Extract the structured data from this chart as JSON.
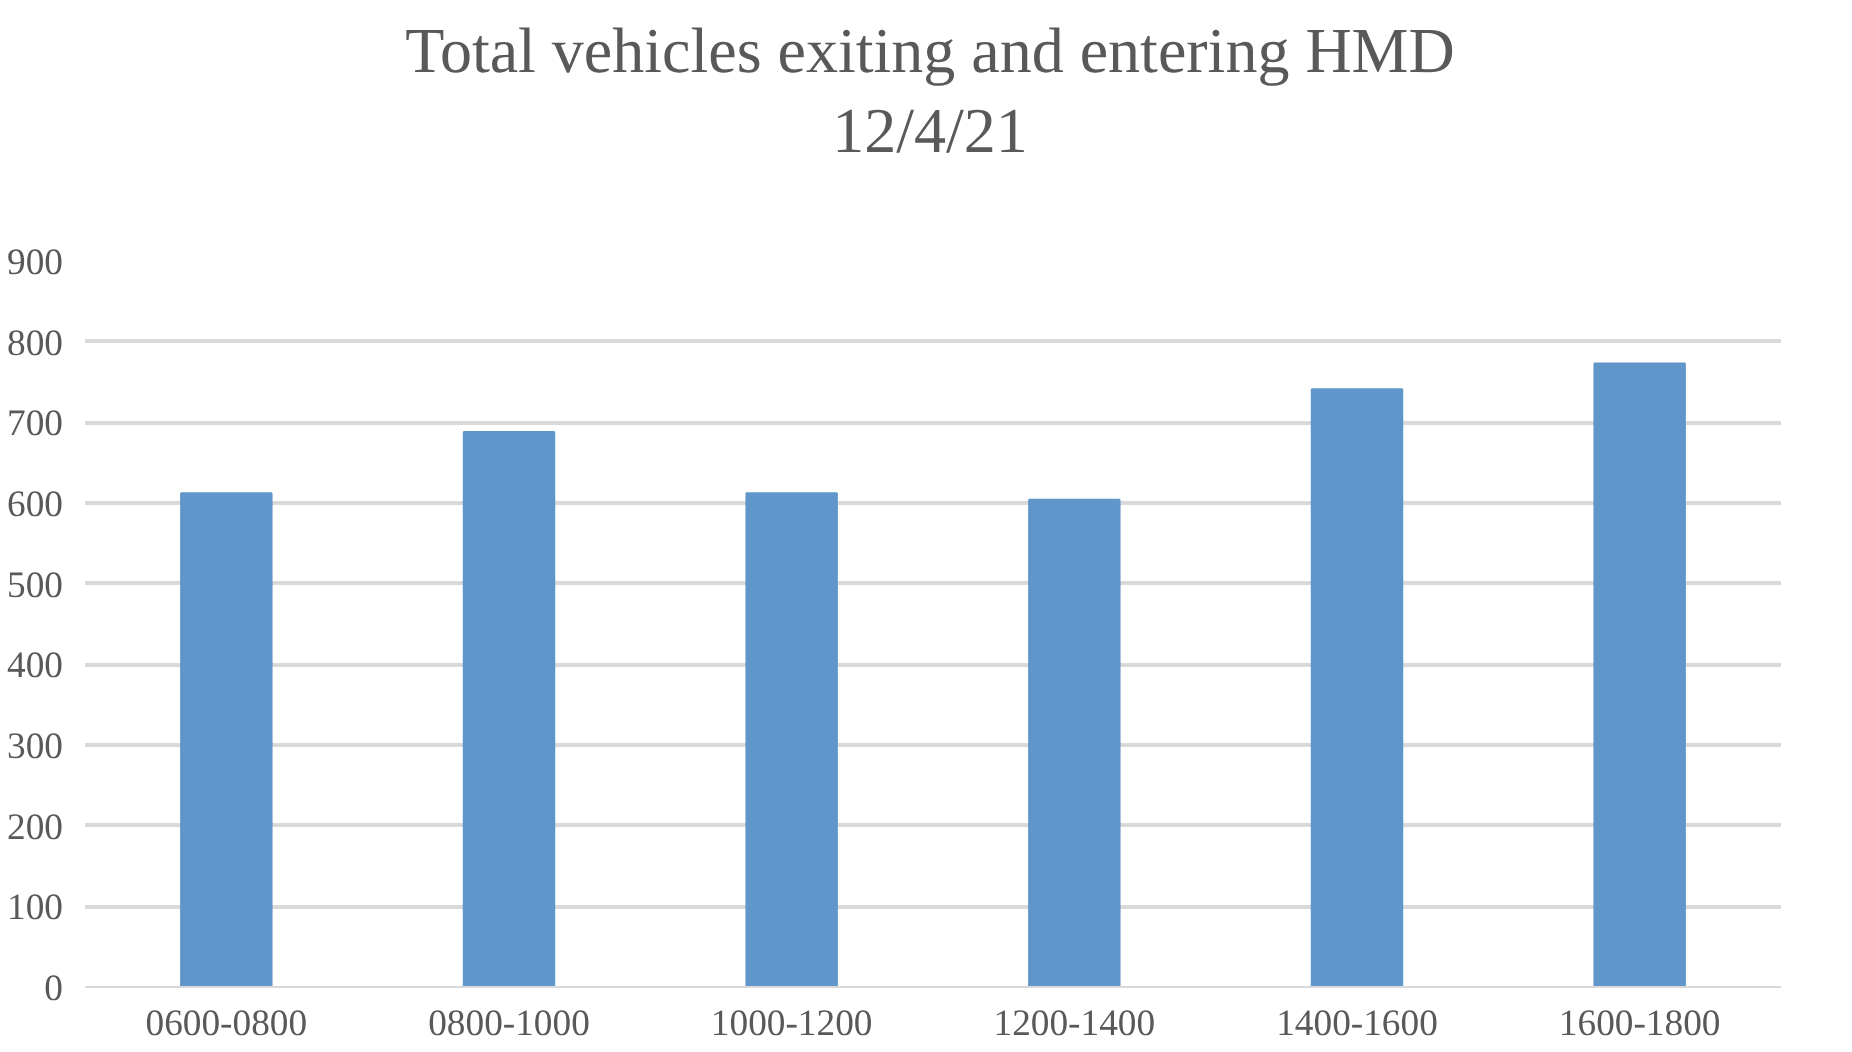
{
  "chart_data": {
    "type": "bar",
    "title": "Total vehicles exiting and entering HMD\n12/4/21",
    "categories": [
      "0600-0800",
      "0800-1000",
      "1000-1200",
      "1200-1400",
      "1400-1600",
      "1600-1800"
    ],
    "values": [
      612,
      688,
      612,
      604,
      741,
      773
    ],
    "color": "#6096c9",
    "ylim": [
      0,
      900
    ],
    "yticks": [
      0,
      100,
      200,
      300,
      400,
      500,
      600,
      700,
      800,
      900
    ],
    "grid": "y"
  }
}
